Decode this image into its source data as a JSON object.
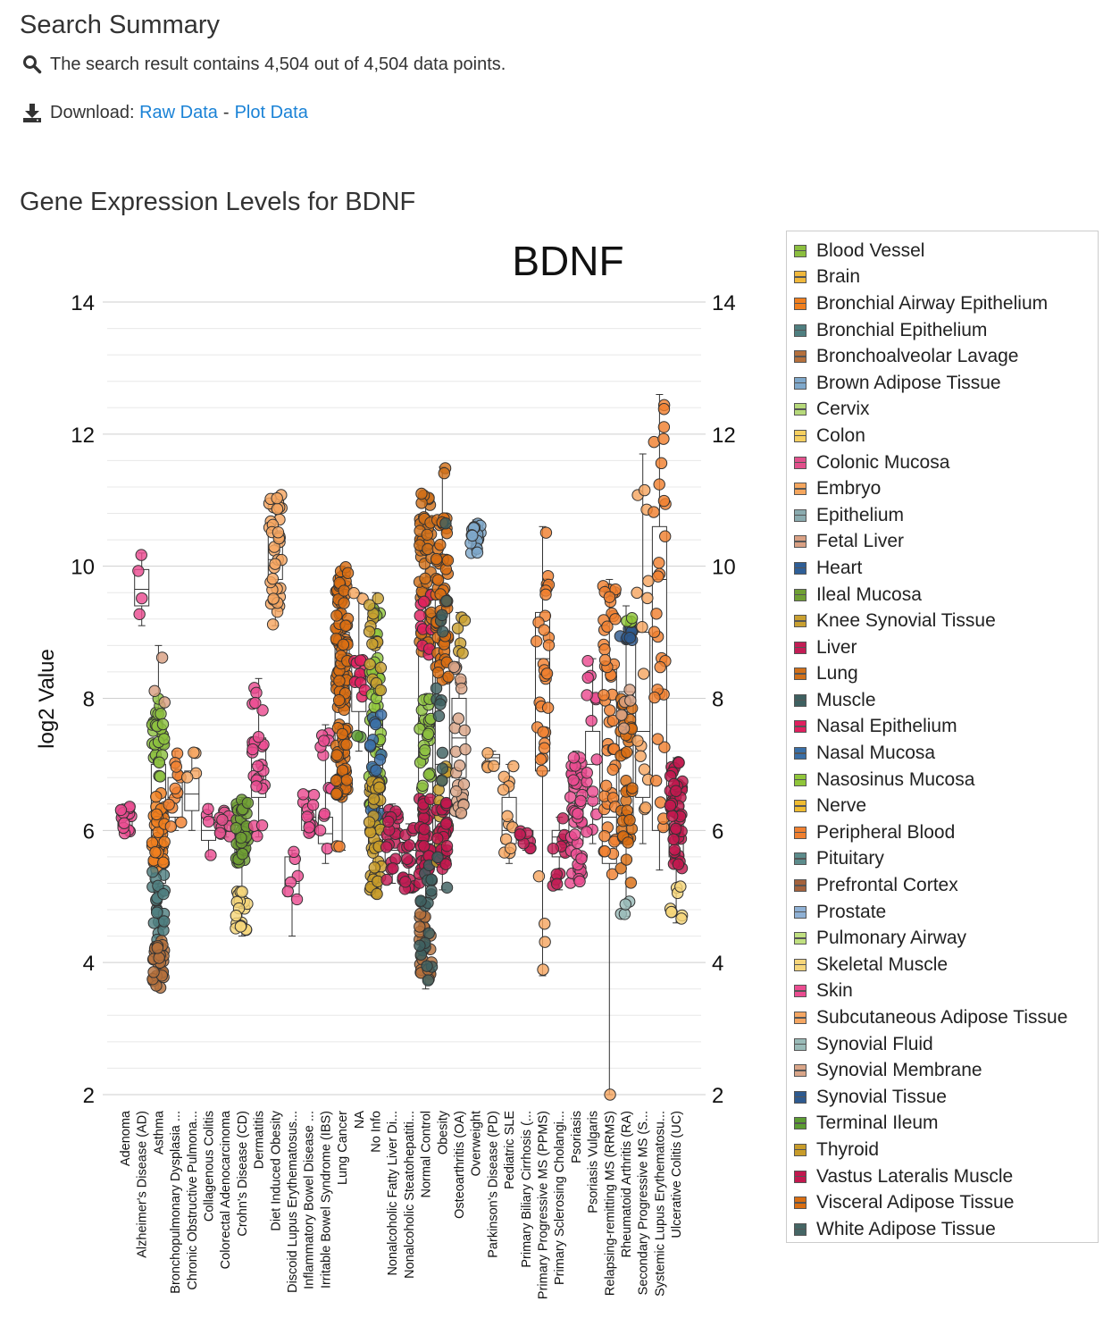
{
  "summary": {
    "title": "Search Summary",
    "result_text": "The search result contains 4,504 out of 4,504 data points.",
    "download_label": "Download:",
    "raw_data_link": "Raw Data",
    "separator": "-",
    "plot_data_link": "Plot Data"
  },
  "icons": {
    "search": "search-icon",
    "download": "download-icon"
  },
  "chart_heading": "Gene Expression Levels for BDNF",
  "legend": [
    {
      "label": "Blood Vessel",
      "color": "#8cbf3f"
    },
    {
      "label": "Brain",
      "color": "#f0b83c"
    },
    {
      "label": "Bronchial Airway Epithelium",
      "color": "#f07f1e"
    },
    {
      "label": "Bronchial Epithelium",
      "color": "#4f7f80"
    },
    {
      "label": "Bronchoalveolar Lavage",
      "color": "#b5703c"
    },
    {
      "label": "Brown Adipose Tissue",
      "color": "#7fa8cb"
    },
    {
      "label": "Cervix",
      "color": "#b6d97a"
    },
    {
      "label": "Colon",
      "color": "#f5cf60"
    },
    {
      "label": "Colonic Mucosa",
      "color": "#e2508c"
    },
    {
      "label": "Embryo",
      "color": "#f5a65e"
    },
    {
      "label": "Epithelium",
      "color": "#8aabaf"
    },
    {
      "label": "Fetal Liver",
      "color": "#d9a083"
    },
    {
      "label": "Heart",
      "color": "#2f5f97"
    },
    {
      "label": "Ileal Mucosa",
      "color": "#6f9f33"
    },
    {
      "label": "Knee Synovial Tissue",
      "color": "#c9a030"
    },
    {
      "label": "Liver",
      "color": "#c31d55"
    },
    {
      "label": "Lung",
      "color": "#d1701a"
    },
    {
      "label": "Muscle",
      "color": "#3e6060"
    },
    {
      "label": "Nasal Epithelium",
      "color": "#e0205f"
    },
    {
      "label": "Nasal Mucosa",
      "color": "#3a6fa7"
    },
    {
      "label": "Nasosinus Mucosa",
      "color": "#90c63a"
    },
    {
      "label": "Nerve",
      "color": "#efbb30"
    },
    {
      "label": "Peripheral Blood",
      "color": "#f08030"
    },
    {
      "label": "Pituitary",
      "color": "#5c8c8c"
    },
    {
      "label": "Prefrontal Cortex",
      "color": "#a4623c"
    },
    {
      "label": "Prostate",
      "color": "#8fb1d5"
    },
    {
      "label": "Pulmonary Airway",
      "color": "#c0e080"
    },
    {
      "label": "Skeletal Muscle",
      "color": "#f5d57a"
    },
    {
      "label": "Skin",
      "color": "#ea4c90"
    },
    {
      "label": "Subcutaneous Adipose Tissue",
      "color": "#f5a662"
    },
    {
      "label": "Synovial Fluid",
      "color": "#9abbb8"
    },
    {
      "label": "Synovial Membrane",
      "color": "#d9a588"
    },
    {
      "label": "Synovial Tissue",
      "color": "#2e5a8f"
    },
    {
      "label": "Terminal Ileum",
      "color": "#5c9c32"
    },
    {
      "label": "Thyroid",
      "color": "#c89c2a"
    },
    {
      "label": "Vastus Lateralis Muscle",
      "color": "#c2184e"
    },
    {
      "label": "Visceral Adipose Tissue",
      "color": "#d96e12"
    },
    {
      "label": "White Adipose Tissue",
      "color": "#456665"
    }
  ],
  "chart_data": {
    "type": "scatter",
    "title": "BDNF",
    "xlabel": "",
    "ylabel": "log2 Value",
    "ylim": [
      2,
      14
    ],
    "yticks": [
      2,
      4,
      6,
      8,
      10,
      12,
      14
    ],
    "grid": true,
    "legend_position": "right",
    "categories": [
      "Adenoma",
      "Alzheimer's Disease (AD)",
      "Asthma",
      "Bronchopulmonary Dysplasia ...",
      "Chronic Obstructive Pulmona...",
      "Collagenous Colitis",
      "Colorectal Adenocarcinoma",
      "Crohn's Disease (CD)",
      "Dermatitis",
      "Diet Induced Obesity",
      "Discoid Lupus Erythematosus...",
      "Inflammatory Bowel Disease ...",
      "Irritable Bowel Syndrome (IBS)",
      "Lung Cancer",
      "NA",
      "No Info",
      "Nonalcoholic Fatty Liver Di...",
      "Nonalcoholic Steatohepatiti...",
      "Normal Control",
      "Obesity",
      "Osteoarthritis (OA)",
      "Overweight",
      "Parkinson's Disease (PD)",
      "Pediatric SLE",
      "Primary Biliary Cirrhosis (...",
      "Primary Progressive MS (PPMS)",
      "Primary Sclerosing Cholangi...",
      "Psoriasis",
      "Psoriasis Vulgaris",
      "Relapsing-remitting MS (RRMS)",
      "Rheumatoid Arthritis (RA)",
      "Secondary Progressive MS (S...",
      "Systemic Lupus Erythematosu...",
      "Ulcerative Colitis (UC)"
    ],
    "groups": [
      {
        "category": "Adenoma",
        "box": [
          5.95,
          6.05,
          6.15,
          6.25,
          6.4
        ],
        "clusters": [
          {
            "tissue": "Skin",
            "min": 5.9,
            "max": 6.4,
            "n": 16
          }
        ]
      },
      {
        "category": "Alzheimer's Disease (AD)",
        "box": [
          9.1,
          9.4,
          9.65,
          9.95,
          10.2
        ],
        "clusters": [
          {
            "tissue": "Skin",
            "min": 9.1,
            "max": 10.2,
            "n": 4
          }
        ]
      },
      {
        "category": "Asthma",
        "box": [
          3.6,
          5.2,
          6.0,
          7.0,
          8.8
        ],
        "clusters": [
          {
            "tissue": "Blood Vessel",
            "min": 6.8,
            "max": 8.0,
            "n": 30
          },
          {
            "tissue": "Bronchial Airway Epithelium",
            "min": 5.4,
            "max": 6.6,
            "n": 40
          },
          {
            "tissue": "Bronchial Epithelium",
            "min": 4.3,
            "max": 5.4,
            "n": 25
          },
          {
            "tissue": "Bronchoalveolar Lavage",
            "min": 3.6,
            "max": 4.4,
            "n": 30
          },
          {
            "tissue": "Fetal Liver",
            "min": 7.9,
            "max": 8.8,
            "n": 3
          }
        ]
      },
      {
        "category": "Bronchopulmonary Dysplasia ...",
        "box": [
          6.0,
          6.2,
          6.5,
          6.8,
          7.2
        ],
        "clusters": [
          {
            "tissue": "Peripheral Blood",
            "min": 6.0,
            "max": 7.2,
            "n": 12
          }
        ]
      },
      {
        "category": "Chronic Obstructive Pulmona...",
        "box": [
          6.0,
          6.3,
          6.55,
          6.9,
          7.2
        ],
        "clusters": [
          {
            "tissue": "Subcutaneous Adipose Tissue",
            "min": 6.0,
            "max": 7.2,
            "n": 4
          }
        ]
      },
      {
        "category": "Collagenous Colitis",
        "box": [
          5.6,
          5.85,
          6.0,
          6.2,
          6.4
        ],
        "clusters": [
          {
            "tissue": "Skin",
            "min": 5.6,
            "max": 6.4,
            "n": 4
          }
        ]
      },
      {
        "category": "Colorectal Adenocarcinoma",
        "box": [
          5.9,
          6.0,
          6.1,
          6.2,
          6.3
        ],
        "clusters": [
          {
            "tissue": "Colonic Mucosa",
            "min": 5.9,
            "max": 6.3,
            "n": 12
          }
        ]
      },
      {
        "category": "Crohn's Disease (CD)",
        "box": [
          4.4,
          5.6,
          5.9,
          6.1,
          6.5
        ],
        "clusters": [
          {
            "tissue": "Ileal Mucosa",
            "min": 5.5,
            "max": 6.5,
            "n": 40
          },
          {
            "tissue": "Skeletal Muscle",
            "min": 4.4,
            "max": 5.1,
            "n": 20
          }
        ]
      },
      {
        "category": "Dermatitis",
        "box": [
          5.9,
          6.5,
          7.0,
          7.4,
          8.3
        ],
        "clusters": [
          {
            "tissue": "Skin",
            "min": 5.9,
            "max": 8.3,
            "n": 25
          }
        ]
      },
      {
        "category": "Diet Induced Obesity",
        "box": [
          9.1,
          9.8,
          10.1,
          10.5,
          11.1
        ],
        "clusters": [
          {
            "tissue": "Subcutaneous Adipose Tissue",
            "min": 9.1,
            "max": 11.1,
            "n": 40
          }
        ]
      },
      {
        "category": "Discoid Lupus Erythematosus...",
        "box": [
          4.4,
          5.0,
          5.2,
          5.6,
          5.7
        ],
        "clusters": [
          {
            "tissue": "Skin",
            "min": 4.4,
            "max": 5.7,
            "n": 6
          }
        ]
      },
      {
        "category": "Inflammatory Bowel Disease ...",
        "box": [
          5.9,
          6.0,
          6.2,
          6.4,
          6.6
        ],
        "clusters": [
          {
            "tissue": "Skin",
            "min": 5.9,
            "max": 6.6,
            "n": 12
          }
        ]
      },
      {
        "category": "Irritable Bowel Syndrome (IBS)",
        "box": [
          5.5,
          5.8,
          5.95,
          6.2,
          7.6
        ],
        "clusters": [
          {
            "tissue": "Skin",
            "min": 5.5,
            "max": 7.6,
            "n": 12
          }
        ]
      },
      {
        "category": "Lung Cancer",
        "box": [
          5.7,
          7.2,
          8.3,
          9.0,
          10.0
        ],
        "clusters": [
          {
            "tissue": "Visceral Adipose Tissue",
            "min": 6.5,
            "max": 10.0,
            "n": 120
          },
          {
            "tissue": "Peripheral Blood",
            "min": 5.7,
            "max": 5.8,
            "n": 2
          }
        ]
      },
      {
        "category": "NA",
        "box": [
          7.2,
          7.8,
          8.2,
          8.5,
          9.6
        ],
        "clusters": [
          {
            "tissue": "Nasal Epithelium",
            "min": 8.0,
            "max": 8.6,
            "n": 12
          },
          {
            "tissue": "Embryo",
            "min": 9.5,
            "max": 9.6,
            "n": 2
          },
          {
            "tissue": "Terminal Ileum",
            "min": 7.2,
            "max": 7.6,
            "n": 2
          }
        ]
      },
      {
        "category": "No Info",
        "box": [
          5.0,
          5.8,
          6.8,
          7.8,
          9.6
        ],
        "clusters": [
          {
            "tissue": "Nasosinus Mucosa",
            "min": 6.0,
            "max": 9.6,
            "n": 50
          },
          {
            "tissue": "Nasal Mucosa",
            "min": 6.2,
            "max": 7.8,
            "n": 20
          },
          {
            "tissue": "Thyroid",
            "min": 5.0,
            "max": 6.8,
            "n": 40
          },
          {
            "tissue": "Knee Synovial Tissue",
            "min": 8.0,
            "max": 9.6,
            "n": 15
          }
        ]
      },
      {
        "category": "Nonalcoholic Fatty Liver Di...",
        "box": [
          5.2,
          5.5,
          5.7,
          5.9,
          6.4
        ],
        "clusters": [
          {
            "tissue": "Liver",
            "min": 5.2,
            "max": 6.4,
            "n": 20
          }
        ]
      },
      {
        "category": "Nonalcoholic Steatohepatiti...",
        "box": [
          5.1,
          5.5,
          5.7,
          5.8,
          6.1
        ],
        "clusters": [
          {
            "tissue": "Liver",
            "min": 5.1,
            "max": 6.1,
            "n": 20
          }
        ]
      },
      {
        "category": "Normal Control",
        "box": [
          3.6,
          5.8,
          6.5,
          9.0,
          11.1
        ],
        "clusters": [
          {
            "tissue": "Lung",
            "min": 8.5,
            "max": 11.1,
            "n": 60
          },
          {
            "tissue": "Blood Vessel",
            "min": 6.2,
            "max": 8.0,
            "n": 30
          },
          {
            "tissue": "Vastus Lateralis Muscle",
            "min": 5.2,
            "max": 6.5,
            "n": 40
          },
          {
            "tissue": "Bronchoalveolar Lavage",
            "min": 3.7,
            "max": 4.8,
            "n": 25
          },
          {
            "tissue": "Muscle",
            "min": 3.6,
            "max": 5.6,
            "n": 20
          },
          {
            "tissue": "Nasal Epithelium",
            "min": 8.6,
            "max": 9.6,
            "n": 10
          }
        ]
      },
      {
        "category": "Obesity",
        "box": [
          5.1,
          6.0,
          7.0,
          9.5,
          11.5
        ],
        "clusters": [
          {
            "tissue": "Visceral Adipose Tissue",
            "min": 8.2,
            "max": 10.8,
            "n": 60
          },
          {
            "tissue": "Thyroid",
            "min": 5.5,
            "max": 7.0,
            "n": 20
          },
          {
            "tissue": "Vastus Lateralis Muscle",
            "min": 5.4,
            "max": 6.5,
            "n": 30
          },
          {
            "tissue": "Muscle",
            "min": 5.0,
            "max": 10.8,
            "n": 15
          },
          {
            "tissue": "Lung",
            "min": 11.4,
            "max": 11.5,
            "n": 2
          }
        ]
      },
      {
        "category": "Osteoarthritis (OA)",
        "box": [
          6.2,
          6.8,
          7.4,
          8.0,
          9.3
        ],
        "clusters": [
          {
            "tissue": "Synovial Membrane",
            "min": 6.2,
            "max": 8.5,
            "n": 25
          },
          {
            "tissue": "Knee Synovial Tissue",
            "min": 8.6,
            "max": 9.3,
            "n": 6
          }
        ]
      },
      {
        "category": "Overweight",
        "box": [
          10.2,
          10.35,
          10.45,
          10.55,
          10.7
        ],
        "clusters": [
          {
            "tissue": "Brown Adipose Tissue",
            "min": 10.2,
            "max": 10.7,
            "n": 20
          }
        ]
      },
      {
        "category": "Parkinson's Disease (PD)",
        "box": [
          6.9,
          7.0,
          7.1,
          7.15,
          7.2
        ],
        "clusters": [
          {
            "tissue": "Embryo",
            "min": 6.9,
            "max": 7.2,
            "n": 4
          }
        ]
      },
      {
        "category": "Pediatric SLE",
        "box": [
          5.5,
          5.8,
          6.0,
          6.5,
          7.0
        ],
        "clusters": [
          {
            "tissue": "Subcutaneous Adipose Tissue",
            "min": 5.5,
            "max": 7.0,
            "n": 12
          }
        ]
      },
      {
        "category": "Primary Biliary Cirrhosis (...",
        "box": [
          5.7,
          5.8,
          5.9,
          6.0,
          6.0
        ],
        "clusters": [
          {
            "tissue": "Liver",
            "min": 5.7,
            "max": 6.0,
            "n": 8
          }
        ]
      },
      {
        "category": "Primary Progressive MS (PPMS)",
        "box": [
          3.8,
          6.9,
          8.6,
          9.3,
          10.6
        ],
        "clusters": [
          {
            "tissue": "Peripheral Blood",
            "min": 6.9,
            "max": 10.6,
            "n": 30
          },
          {
            "tissue": "Subcutaneous Adipose Tissue",
            "min": 3.8,
            "max": 5.4,
            "n": 4
          }
        ]
      },
      {
        "category": "Primary Sclerosing Cholangi...",
        "box": [
          5.1,
          5.6,
          5.9,
          6.0,
          6.2
        ],
        "clusters": [
          {
            "tissue": "Liver",
            "min": 5.1,
            "max": 6.2,
            "n": 12
          }
        ]
      },
      {
        "category": "Psoriasis",
        "box": [
          5.2,
          5.8,
          6.3,
          6.8,
          7.2
        ],
        "clusters": [
          {
            "tissue": "Skin",
            "min": 5.2,
            "max": 7.2,
            "n": 45
          }
        ]
      },
      {
        "category": "Psoriasis Vulgaris",
        "box": [
          5.8,
          6.4,
          7.0,
          7.5,
          8.6
        ],
        "clusters": [
          {
            "tissue": "Skin",
            "min": 5.8,
            "max": 8.6,
            "n": 15
          }
        ]
      },
      {
        "category": "Relapsing-remitting MS (RRMS)",
        "box": [
          2.0,
          5.5,
          6.2,
          8.5,
          9.8
        ],
        "clusters": [
          {
            "tissue": "Peripheral Blood",
            "min": 5.3,
            "max": 9.8,
            "n": 50
          },
          {
            "tissue": "Subcutaneous Adipose Tissue",
            "min": 2.0,
            "max": 2.1,
            "n": 1
          }
        ]
      },
      {
        "category": "Rheumatoid Arthritis (RA)",
        "box": [
          4.7,
          5.8,
          6.6,
          8.1,
          9.4
        ],
        "clusters": [
          {
            "tissue": "Visceral Adipose Tissue",
            "min": 5.2,
            "max": 8.0,
            "n": 40
          },
          {
            "tissue": "Synovial Tissue",
            "min": 8.8,
            "max": 9.1,
            "n": 12
          },
          {
            "tissue": "Synovial Fluid",
            "min": 4.7,
            "max": 5.0,
            "n": 4
          },
          {
            "tissue": "Nasosinus Mucosa",
            "min": 9.1,
            "max": 9.5,
            "n": 4
          },
          {
            "tissue": "Synovial Membrane",
            "min": 7.5,
            "max": 8.3,
            "n": 5
          }
        ]
      },
      {
        "category": "Secondary Progressive MS (S...",
        "box": [
          5.8,
          6.5,
          7.5,
          9.0,
          11.7
        ],
        "clusters": [
          {
            "tissue": "Subcutaneous Adipose Tissue",
            "min": 5.8,
            "max": 11.7,
            "n": 15
          }
        ]
      },
      {
        "category": "Systemic Lupus Erythematosu...",
        "box": [
          5.4,
          6.0,
          9.8,
          10.6,
          12.6
        ],
        "clusters": [
          {
            "tissue": "Peripheral Blood",
            "min": 5.4,
            "max": 12.6,
            "n": 30
          }
        ]
      },
      {
        "category": "Ulcerative Colitis (UC)",
        "box": [
          4.6,
          5.6,
          6.0,
          6.4,
          7.1
        ],
        "clusters": [
          {
            "tissue": "Vastus Lateralis Muscle",
            "min": 5.4,
            "max": 7.1,
            "n": 50
          },
          {
            "tissue": "Skeletal Muscle",
            "min": 4.6,
            "max": 5.2,
            "n": 8
          }
        ]
      }
    ]
  }
}
